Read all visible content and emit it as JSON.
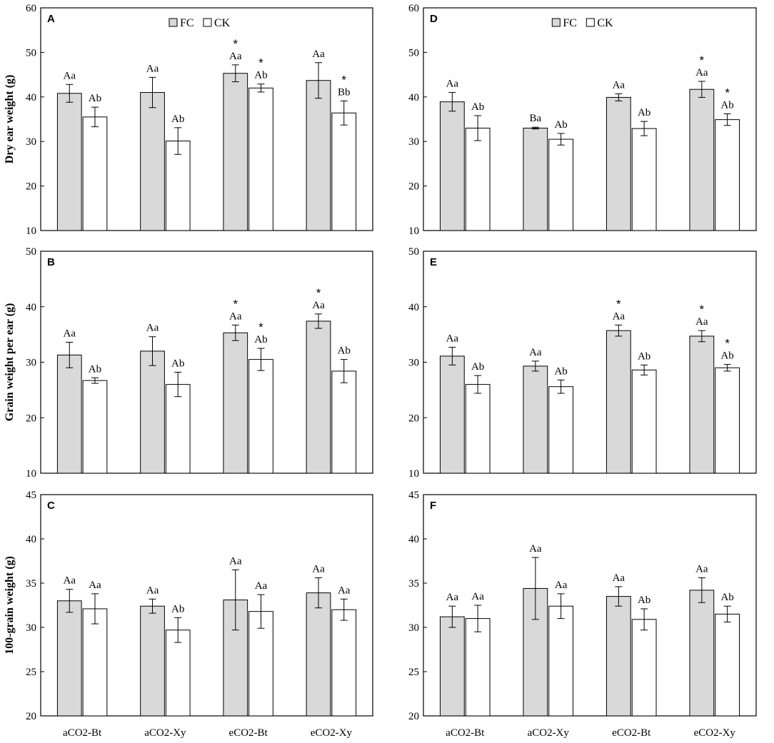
{
  "legend": {
    "fc_label": "FC",
    "ck_label": "CK"
  },
  "colors": {
    "fc": "#d9d9d9",
    "ck": "#ffffff",
    "stroke": "#000000"
  },
  "chart_data": [
    {
      "panel": "A",
      "type": "bar",
      "ylabel": "Dry ear weight (g)",
      "ylim": [
        10,
        60
      ],
      "yticks": [
        10,
        20,
        30,
        40,
        50,
        60
      ],
      "show_legend": true,
      "categories": [
        "aCO2-Bt",
        "aCO2-Xy",
        "eCO2-Bt",
        "eCO2-Xy"
      ],
      "series": [
        {
          "name": "FC",
          "values": [
            40.8,
            41.0,
            45.3,
            43.7
          ],
          "errors": [
            2.0,
            3.4,
            1.9,
            4.0
          ],
          "labels": [
            "Aa",
            "Aa",
            "Aa",
            "Aa"
          ],
          "stars": [
            "",
            "",
            "*",
            ""
          ]
        },
        {
          "name": "CK",
          "values": [
            35.5,
            30.1,
            42.0,
            36.4
          ],
          "errors": [
            2.2,
            3.0,
            0.9,
            2.7
          ],
          "labels": [
            "Ab",
            "Ab",
            "Ab",
            "Bb"
          ],
          "stars": [
            "",
            "",
            "*",
            "*"
          ]
        }
      ]
    },
    {
      "panel": "B",
      "type": "bar",
      "ylabel": "Grain weight per ear (g)",
      "ylim": [
        10,
        50
      ],
      "yticks": [
        10,
        20,
        30,
        40,
        50
      ],
      "show_legend": false,
      "categories": [
        "aCO2-Bt",
        "aCO2-Xy",
        "eCO2-Bt",
        "eCO2-Xy"
      ],
      "series": [
        {
          "name": "FC",
          "values": [
            31.3,
            32.0,
            35.3,
            37.4
          ],
          "errors": [
            2.3,
            2.6,
            1.4,
            1.3
          ],
          "labels": [
            "Aa",
            "Aa",
            "Aa",
            "Aa"
          ],
          "stars": [
            "",
            "",
            "*",
            "*"
          ]
        },
        {
          "name": "CK",
          "values": [
            26.7,
            26.0,
            30.5,
            28.4
          ],
          "errors": [
            0.5,
            2.2,
            2.0,
            2.1
          ],
          "labels": [
            "Ab",
            "Ab",
            "Ab",
            "Ab"
          ],
          "stars": [
            "",
            "",
            "*",
            ""
          ]
        }
      ]
    },
    {
      "panel": "C",
      "type": "bar",
      "ylabel": "100-grain weight (g)",
      "ylim": [
        20,
        45
      ],
      "yticks": [
        20,
        25,
        30,
        35,
        40,
        45
      ],
      "show_legend": false,
      "categories": [
        "aCO2-Bt",
        "aCO2-Xy",
        "eCO2-Bt",
        "eCO2-Xy"
      ],
      "series": [
        {
          "name": "FC",
          "values": [
            33.0,
            32.4,
            33.1,
            33.9
          ],
          "errors": [
            1.3,
            0.8,
            3.4,
            1.7
          ],
          "labels": [
            "Aa",
            "Aa",
            "Aa",
            "Aa"
          ],
          "stars": [
            "",
            "",
            "",
            ""
          ]
        },
        {
          "name": "CK",
          "values": [
            32.1,
            29.7,
            31.8,
            32.0
          ],
          "errors": [
            1.7,
            1.4,
            1.9,
            1.2
          ],
          "labels": [
            "Aa",
            "Ab",
            "Aa",
            "Aa"
          ],
          "stars": [
            "",
            "",
            "",
            ""
          ]
        }
      ]
    },
    {
      "panel": "D",
      "type": "bar",
      "ylabel": "",
      "ylim": [
        10,
        60
      ],
      "yticks": [
        10,
        20,
        30,
        40,
        50,
        60
      ],
      "show_legend": true,
      "categories": [
        "aCO2-Bt",
        "aCO2-Xy",
        "eCO2-Bt",
        "eCO2-Xy"
      ],
      "series": [
        {
          "name": "FC",
          "values": [
            38.9,
            33.0,
            39.9,
            41.7
          ],
          "errors": [
            2.1,
            0.2,
            0.8,
            1.8
          ],
          "labels": [
            "Aa",
            "Ba",
            "Aa",
            "Aa"
          ],
          "stars": [
            "",
            "",
            "",
            "*"
          ]
        },
        {
          "name": "CK",
          "values": [
            33.0,
            30.5,
            32.9,
            34.9
          ],
          "errors": [
            2.8,
            1.3,
            1.6,
            1.3
          ],
          "labels": [
            "Ab",
            "Ab",
            "Ab",
            "Ab"
          ],
          "stars": [
            "",
            "",
            "",
            "*"
          ]
        }
      ]
    },
    {
      "panel": "E",
      "type": "bar",
      "ylabel": "",
      "ylim": [
        10,
        50
      ],
      "yticks": [
        10,
        20,
        30,
        40,
        50
      ],
      "show_legend": false,
      "categories": [
        "aCO2-Bt",
        "aCO2-Xy",
        "eCO2-Bt",
        "eCO2-Xy"
      ],
      "series": [
        {
          "name": "FC",
          "values": [
            31.1,
            29.3,
            35.7,
            34.7
          ],
          "errors": [
            1.6,
            0.9,
            1.0,
            1.0
          ],
          "labels": [
            "Aa",
            "Aa",
            "Aa",
            "Aa"
          ],
          "stars": [
            "",
            "",
            "*",
            "*"
          ]
        },
        {
          "name": "CK",
          "values": [
            26.0,
            25.6,
            28.6,
            29.0
          ],
          "errors": [
            1.6,
            1.2,
            0.9,
            0.6
          ],
          "labels": [
            "Ab",
            "Ab",
            "Ab",
            "Ab"
          ],
          "stars": [
            "",
            "",
            "",
            "*"
          ]
        }
      ]
    },
    {
      "panel": "F",
      "type": "bar",
      "ylabel": "",
      "ylim": [
        20,
        45
      ],
      "yticks": [
        20,
        25,
        30,
        35,
        40,
        45
      ],
      "show_legend": false,
      "categories": [
        "aCO2-Bt",
        "aCO2-Xy",
        "eCO2-Bt",
        "eCO2-Xy"
      ],
      "series": [
        {
          "name": "FC",
          "values": [
            31.2,
            34.4,
            33.5,
            34.2
          ],
          "errors": [
            1.2,
            3.5,
            1.1,
            1.4
          ],
          "labels": [
            "Aa",
            "Aa",
            "Aa",
            "Aa"
          ],
          "stars": [
            "",
            "",
            "",
            ""
          ]
        },
        {
          "name": "CK",
          "values": [
            31.0,
            32.4,
            30.9,
            31.5
          ],
          "errors": [
            1.5,
            1.4,
            1.2,
            0.9
          ],
          "labels": [
            "Aa",
            "Aa",
            "Ab",
            "Ab"
          ],
          "stars": [
            "",
            "",
            "",
            ""
          ]
        }
      ]
    }
  ]
}
